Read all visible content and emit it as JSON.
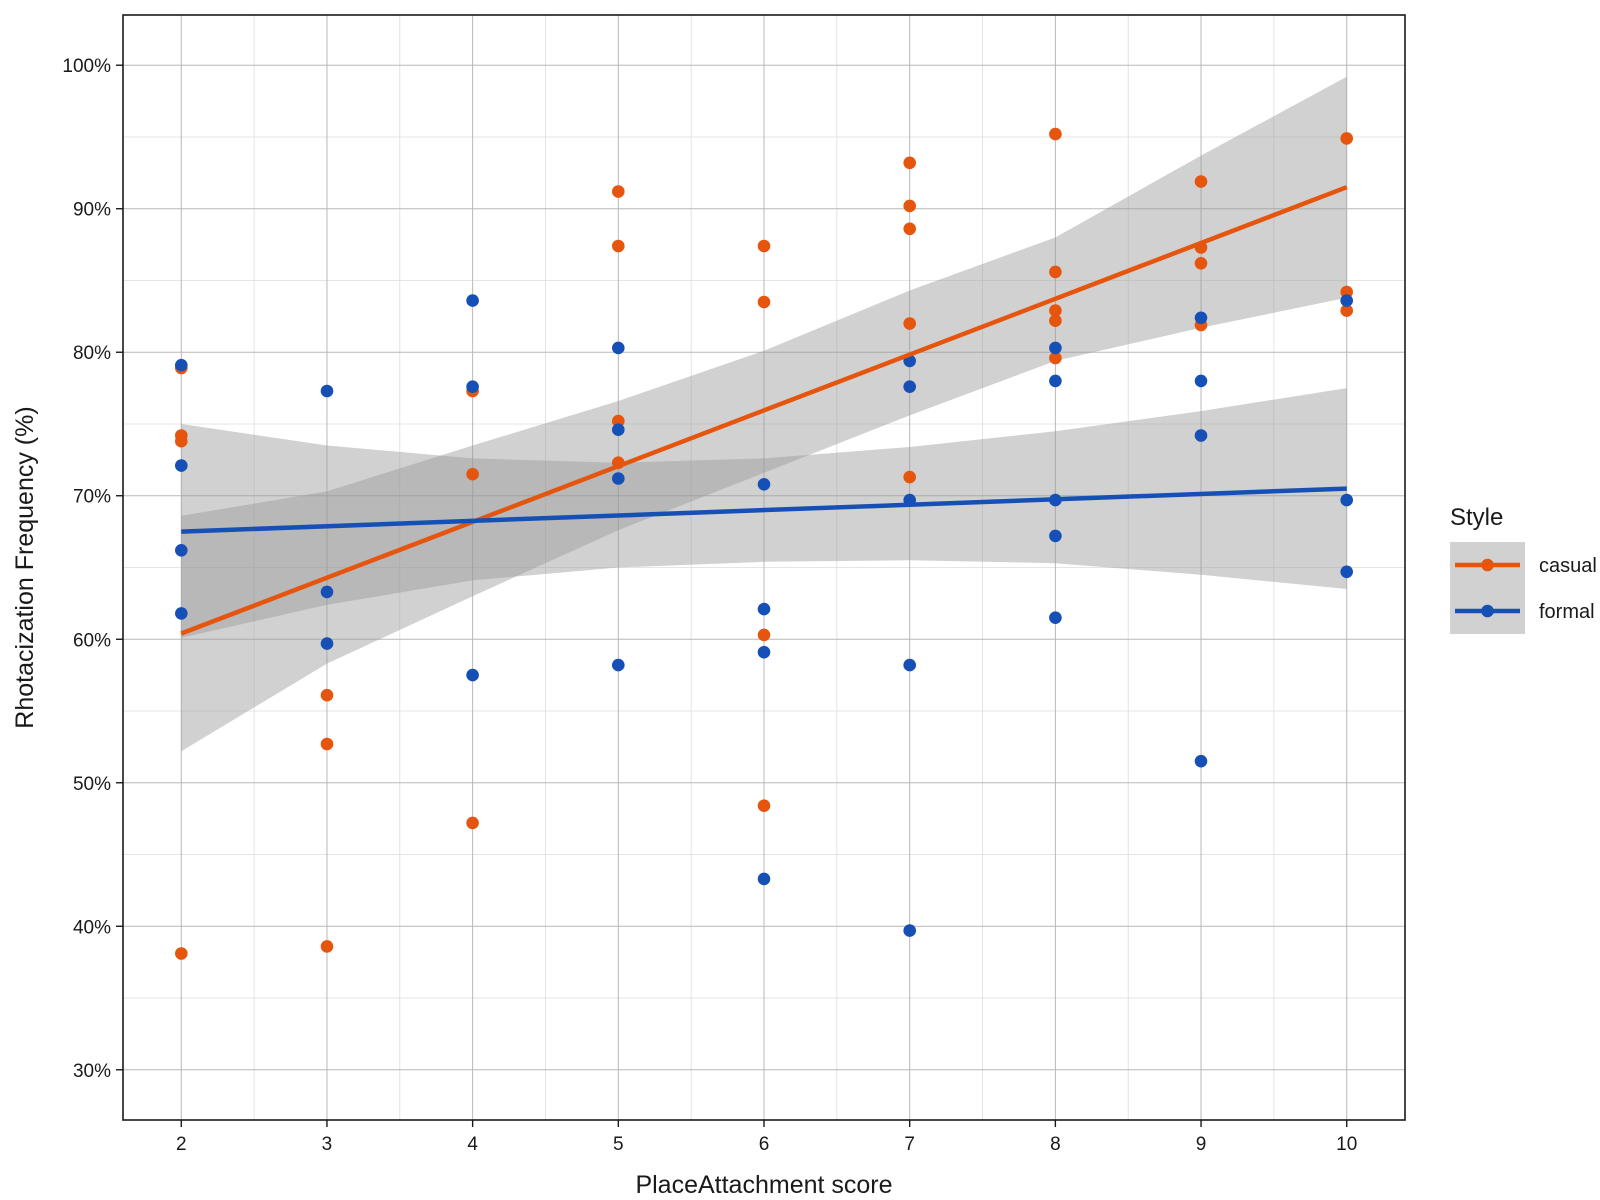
{
  "chart_data": {
    "type": "scatter",
    "xlabel": "PlaceAttachment score",
    "ylabel": "Rhotacization Frequency (%)",
    "xlim": [
      1.6,
      10.4
    ],
    "ylim": [
      26.5,
      103.5
    ],
    "x_ticks": [
      2,
      3,
      4,
      5,
      6,
      7,
      8,
      9,
      10
    ],
    "x_tick_labels": [
      "2",
      "3",
      "4",
      "5",
      "6",
      "7",
      "8",
      "9",
      "10"
    ],
    "y_ticks": [
      30,
      40,
      50,
      60,
      70,
      80,
      90,
      100
    ],
    "y_tick_labels": [
      "30%",
      "40%",
      "50%",
      "60%",
      "70%",
      "80%",
      "90%",
      "100%"
    ],
    "grid": true,
    "legend": {
      "title": "Style",
      "position": "right",
      "entries": [
        "casual",
        "formal"
      ]
    },
    "series": [
      {
        "name": "casual",
        "color": "#E6550D",
        "points": [
          [
            2,
            78.9
          ],
          [
            2,
            74.2
          ],
          [
            2,
            73.8
          ],
          [
            2,
            38.1
          ],
          [
            3,
            56.1
          ],
          [
            3,
            52.7
          ],
          [
            3,
            38.6
          ],
          [
            4,
            77.3
          ],
          [
            4,
            71.5
          ],
          [
            4,
            47.2
          ],
          [
            5,
            91.2
          ],
          [
            5,
            87.4
          ],
          [
            5,
            75.2
          ],
          [
            5,
            72.3
          ],
          [
            6,
            87.4
          ],
          [
            6,
            83.5
          ],
          [
            6,
            60.3
          ],
          [
            6,
            48.4
          ],
          [
            7,
            93.2
          ],
          [
            7,
            90.2
          ],
          [
            7,
            88.6
          ],
          [
            7,
            82.0
          ],
          [
            7,
            71.3
          ],
          [
            8,
            95.2
          ],
          [
            8,
            85.6
          ],
          [
            8,
            82.9
          ],
          [
            8,
            82.2
          ],
          [
            8,
            79.6
          ],
          [
            9,
            91.9
          ],
          [
            9,
            87.3
          ],
          [
            9,
            86.2
          ],
          [
            9,
            81.9
          ],
          [
            10,
            94.9
          ],
          [
            10,
            84.2
          ],
          [
            10,
            82.9
          ]
        ],
        "fit": {
          "x": [
            2,
            10
          ],
          "y": [
            60.4,
            91.5
          ]
        },
        "ci": {
          "x": [
            2,
            3,
            4,
            5,
            6,
            7,
            8,
            9,
            10
          ],
          "lower": [
            52.2,
            58.3,
            63.0,
            67.6,
            71.6,
            75.6,
            79.4,
            81.7,
            83.8
          ],
          "upper": [
            68.6,
            70.3,
            73.5,
            76.6,
            80.1,
            84.3,
            88.0,
            93.7,
            99.2
          ]
        }
      },
      {
        "name": "formal",
        "color": "#1650B6",
        "points": [
          [
            2,
            79.1
          ],
          [
            2,
            72.1
          ],
          [
            2,
            66.2
          ],
          [
            2,
            61.8
          ],
          [
            3,
            77.3
          ],
          [
            3,
            63.3
          ],
          [
            3,
            59.7
          ],
          [
            4,
            83.6
          ],
          [
            4,
            77.6
          ],
          [
            4,
            57.5
          ],
          [
            5,
            80.3
          ],
          [
            5,
            74.6
          ],
          [
            5,
            71.2
          ],
          [
            5,
            58.2
          ],
          [
            6,
            70.8
          ],
          [
            6,
            62.1
          ],
          [
            6,
            59.1
          ],
          [
            6,
            43.3
          ],
          [
            7,
            79.4
          ],
          [
            7,
            77.6
          ],
          [
            7,
            69.7
          ],
          [
            7,
            58.2
          ],
          [
            7,
            39.7
          ],
          [
            8,
            80.3
          ],
          [
            8,
            78.0
          ],
          [
            8,
            69.7
          ],
          [
            8,
            67.2
          ],
          [
            8,
            61.5
          ],
          [
            9,
            82.4
          ],
          [
            9,
            78.0
          ],
          [
            9,
            74.2
          ],
          [
            9,
            51.5
          ],
          [
            10,
            83.6
          ],
          [
            10,
            69.7
          ],
          [
            10,
            64.7
          ]
        ],
        "fit": {
          "x": [
            2,
            10
          ],
          "y": [
            67.5,
            70.5
          ]
        },
        "ci": {
          "x": [
            2,
            3,
            4,
            5,
            6,
            7,
            8,
            9,
            10
          ],
          "lower": [
            60.1,
            62.4,
            64.1,
            65.0,
            65.4,
            65.5,
            65.3,
            64.5,
            63.5
          ],
          "upper": [
            75.0,
            73.5,
            72.6,
            72.3,
            72.6,
            73.4,
            74.5,
            75.9,
            77.5
          ]
        }
      }
    ]
  }
}
